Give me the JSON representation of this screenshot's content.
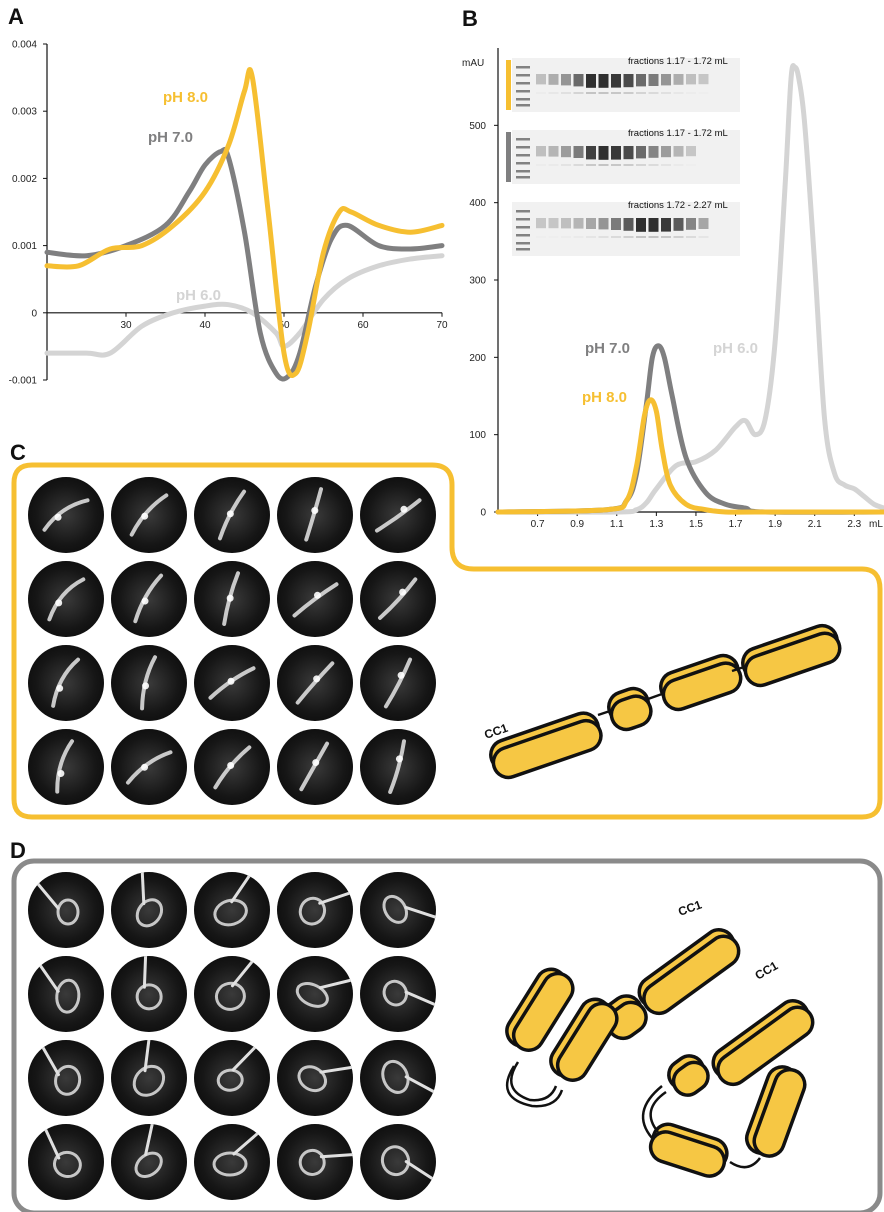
{
  "panels": {
    "a": "A",
    "b": "B",
    "c": "C",
    "d": "D"
  },
  "colors": {
    "ph8": "#f6bf31",
    "ph7": "#7f7f80",
    "ph6": "#d4d4d4",
    "frame_c": "#f6bf31",
    "frame_d": "#8a8a8a",
    "domain_fill": "#f6c744"
  },
  "chart_data": [
    {
      "type": "line",
      "panel": "A",
      "title": "",
      "xlabel": "",
      "ylabel": "",
      "xlim": [
        20,
        70
      ],
      "ylim": [
        -0.001,
        0.004
      ],
      "x_ticks": [
        "30",
        "40",
        "50",
        "60",
        "70"
      ],
      "y_ticks": [
        "0.004",
        "0.003",
        "0.002",
        "0.001",
        "0",
        "-0.001"
      ],
      "series": [
        {
          "name": "pH 8.0",
          "color": "#f6bf31",
          "x": [
            20,
            24,
            28,
            32,
            36,
            40,
            43,
            45,
            46,
            48,
            50,
            51.5,
            53,
            55,
            57,
            58.5,
            62,
            66,
            70
          ],
          "y": [
            0.0007,
            0.0007,
            0.00095,
            0.001,
            0.0013,
            0.0018,
            0.0025,
            0.0033,
            0.0035,
            0.0015,
            -0.0006,
            -0.0009,
            -0.0003,
            0.0009,
            0.0015,
            0.0015,
            0.0013,
            0.0012,
            0.0013
          ]
        },
        {
          "name": "pH 7.0",
          "color": "#7f7f80",
          "x": [
            20,
            25,
            30,
            35,
            38,
            40,
            42,
            43,
            45,
            47,
            49,
            50.5,
            52,
            54,
            56,
            58,
            62,
            66,
            70
          ],
          "y": [
            0.0009,
            0.00085,
            0.001,
            0.0013,
            0.0018,
            0.0022,
            0.0024,
            0.0023,
            0.0012,
            -0.0003,
            -0.0009,
            -0.00095,
            -0.0006,
            0.0004,
            0.0011,
            0.0013,
            0.001,
            0.00095,
            0.001
          ]
        },
        {
          "name": "pH 6.0",
          "color": "#d4d4d4",
          "x": [
            20,
            25,
            28,
            32,
            36,
            40,
            43,
            46,
            49,
            50,
            52,
            55,
            58,
            62,
            66,
            70
          ],
          "y": [
            -0.0006,
            -0.0006,
            -0.0006,
            -0.0002,
            0.0,
            0.0001,
            0.00012,
            0.0,
            -0.0003,
            -0.0005,
            -0.0003,
            0.0002,
            0.0005,
            0.0007,
            0.0008,
            0.00085
          ]
        }
      ]
    },
    {
      "type": "line",
      "panel": "B",
      "title": "",
      "xlabel": "mL",
      "ylabel": "mAU",
      "xlim": [
        0.5,
        2.45
      ],
      "ylim": [
        0,
        600
      ],
      "x_ticks": [
        "0.7",
        "0.9",
        "1.1",
        "1.3",
        "1.5",
        "1.7",
        "1.9",
        "2.1",
        "2.3"
      ],
      "y_ticks": [
        "500",
        "400",
        "300",
        "200",
        "100",
        "0"
      ],
      "series": [
        {
          "name": "pH 6.0",
          "color": "#d4d4d4",
          "x": [
            0.5,
            1.1,
            1.2,
            1.25,
            1.3,
            1.4,
            1.5,
            1.6,
            1.7,
            1.75,
            1.8,
            1.85,
            1.9,
            1.95,
            1.98,
            2.0,
            2.02,
            2.05,
            2.1,
            2.15,
            2.2,
            2.25,
            2.3,
            2.35,
            2.4,
            2.45
          ],
          "y": [
            0,
            0,
            3,
            12,
            30,
            60,
            65,
            80,
            110,
            118,
            100,
            120,
            220,
            420,
            560,
            575,
            560,
            500,
            320,
            120,
            50,
            35,
            30,
            20,
            10,
            5
          ]
        },
        {
          "name": "pH 7.0",
          "color": "#7f7f80",
          "x": [
            0.5,
            1.05,
            1.15,
            1.2,
            1.25,
            1.28,
            1.31,
            1.34,
            1.38,
            1.45,
            1.55,
            1.65,
            1.75,
            1.85,
            2.45
          ],
          "y": [
            0,
            3,
            15,
            50,
            140,
            200,
            215,
            200,
            150,
            70,
            25,
            10,
            5,
            0,
            0
          ]
        },
        {
          "name": "pH 8.0",
          "color": "#f6bf31",
          "x": [
            0.5,
            1.05,
            1.15,
            1.2,
            1.24,
            1.27,
            1.3,
            1.33,
            1.37,
            1.45,
            1.55,
            1.65,
            1.8,
            2.45
          ],
          "y": [
            0,
            3,
            15,
            60,
            125,
            145,
            130,
            80,
            35,
            10,
            3,
            0,
            0,
            0
          ]
        }
      ]
    }
  ],
  "panel_a_labels": {
    "ph8": "pH 8.0",
    "ph7": "pH 7.0",
    "ph6": "pH 6.0"
  },
  "panel_b_labels": {
    "ph7": "pH 7.0",
    "ph8": "pH 8.0",
    "ph6": "pH 6.0",
    "mau": "mAU",
    "ml": "mL"
  },
  "gels": [
    {
      "caption": "fractions 1.17 - 1.72 mL",
      "marker_color": "#f6bf31"
    },
    {
      "caption": "fractions 1.17 - 1.72 mL",
      "marker_color": "#7f7f80"
    },
    {
      "caption": "fractions 1.72 - 2.27 mL",
      "marker_color": "#ffffff"
    }
  ],
  "panel_c": {
    "schematic_label": "CC1"
  },
  "panel_d": {
    "schematic_label_1": "CC1",
    "schematic_label_2": "CC1"
  }
}
